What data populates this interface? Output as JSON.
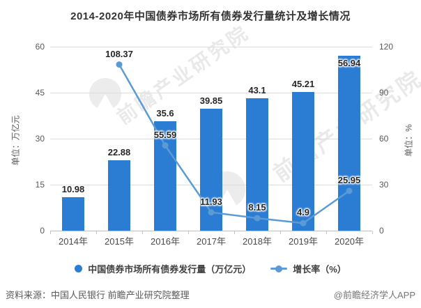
{
  "title": "2014-2020年中国债券市场所有债券发行量统计及增长情况",
  "watermark": {
    "text": "前瞻产业研究院"
  },
  "chart_data": {
    "type": "bar",
    "categories": [
      "2014年",
      "2015年",
      "2016年",
      "2017年",
      "2018年",
      "2019年",
      "2020年"
    ],
    "series": [
      {
        "name": "中国债券市场所有债券发行量（万亿元）",
        "type": "bar",
        "axis": "left",
        "color": "#2b7cd3",
        "values": [
          10.98,
          22.88,
          35.6,
          39.85,
          43.1,
          45.21,
          56.94
        ]
      },
      {
        "name": "增长率（%）",
        "type": "line",
        "axis": "right",
        "color": "#5b9bd5",
        "values": [
          null,
          108.37,
          55.59,
          11.93,
          8.15,
          4.9,
          25.95
        ]
      }
    ],
    "left_axis": {
      "title": "单位：万亿元",
      "min": 0,
      "max": 60,
      "ticks": [
        0,
        15,
        30,
        45,
        60
      ]
    },
    "right_axis": {
      "title": "单位：%",
      "min": 0,
      "max": 120,
      "ticks": [
        0,
        30,
        60,
        90,
        120
      ]
    },
    "grid": true,
    "legend_position": "bottom"
  },
  "footer": {
    "source": "资料来源：中国人民银行 前瞻产业研究院整理",
    "credit": "@前瞻经济学人APP"
  },
  "colors": {
    "bar": "#2b7cd3",
    "line": "#5b9bd5",
    "grid": "#dcdcdc",
    "axis_line": "#bfbfbf",
    "tick_text": "#595959",
    "data_label": "#262626",
    "title_text": "#333333"
  }
}
